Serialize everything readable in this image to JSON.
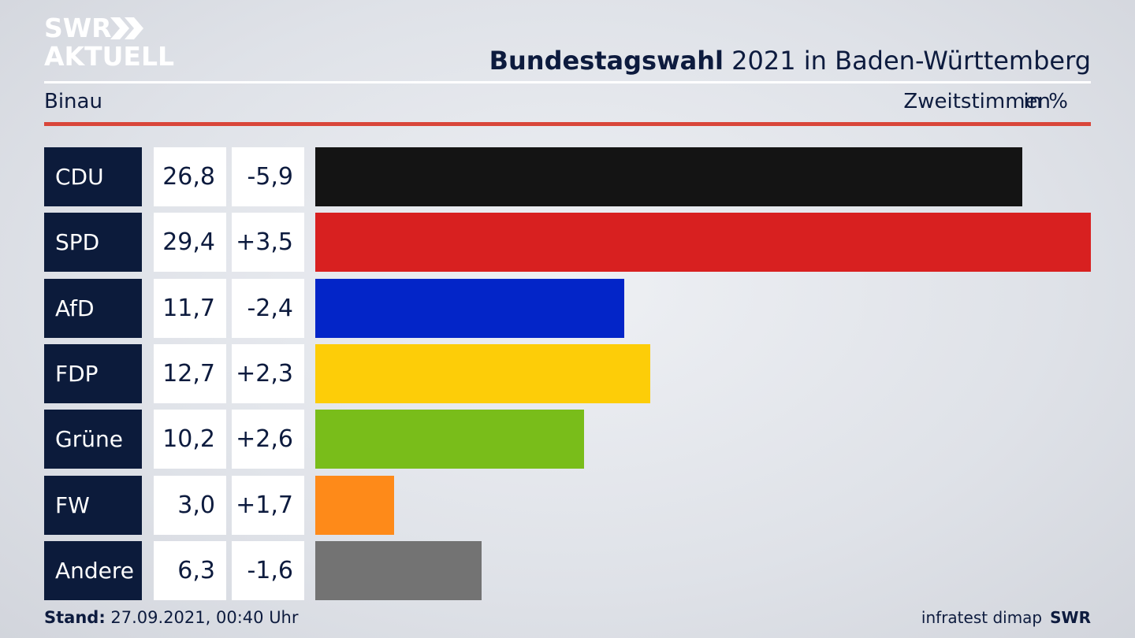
{
  "brand": {
    "logo_line1": "SWR",
    "logo_line2": "AKTUELL"
  },
  "header": {
    "title_bold": "Bundestagswahl",
    "title_rest": "2021 in Baden-Württemberg",
    "region": "Binau",
    "metric": "Zweitstimmen",
    "unit": "in %"
  },
  "chart_data": {
    "type": "bar",
    "orientation": "horizontal",
    "categories": [
      "CDU",
      "SPD",
      "AfD",
      "FDP",
      "Grüne",
      "FW",
      "Andere"
    ],
    "values": [
      26.8,
      29.4,
      11.7,
      12.7,
      10.2,
      3.0,
      6.3
    ],
    "value_labels": [
      "26,8",
      "29,4",
      "11,7",
      "12,7",
      "10,2",
      "3,0",
      "6,3"
    ],
    "diff_labels": [
      "-5,9",
      "+3,5",
      "-2,4",
      "+2,3",
      "+2,6",
      "+1,7",
      "-1,6"
    ],
    "colors": [
      "#141414",
      "#d82020",
      "#0325c8",
      "#fdcd08",
      "#79bd1a",
      "#fe8a19",
      "#737373"
    ],
    "xlim": [
      0,
      29.4
    ]
  },
  "footer": {
    "stand_label": "Stand:",
    "stand_value": "27.09.2021, 00:40 Uhr",
    "source": "infratest dimap",
    "source_brand": "SWR"
  }
}
